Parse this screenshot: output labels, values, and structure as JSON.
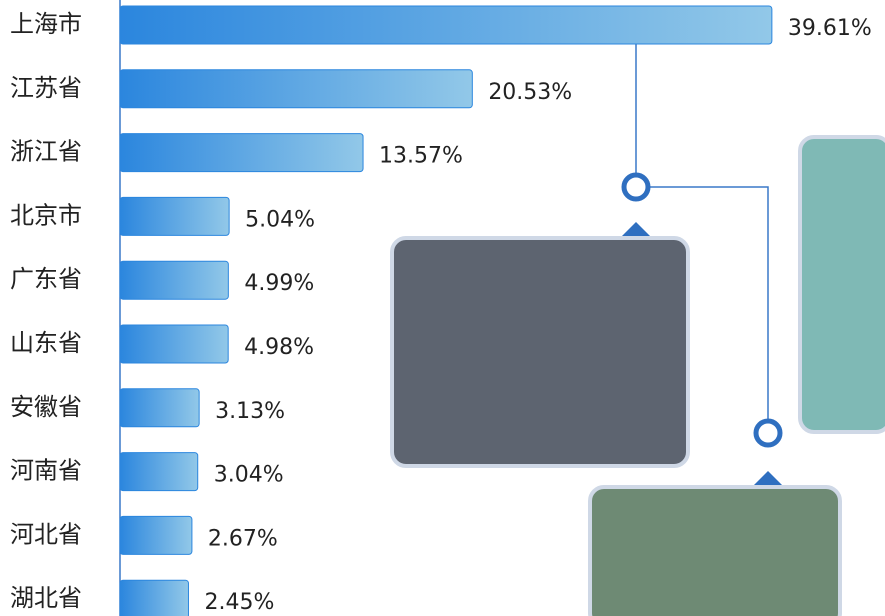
{
  "chart_data": {
    "type": "bar",
    "orientation": "horizontal",
    "categories": [
      "上海市",
      "江苏省",
      "浙江省",
      "北京市",
      "广东省",
      "山东省",
      "安徽省",
      "河南省",
      "河北省",
      "湖北省"
    ],
    "values": [
      39.61,
      20.53,
      13.57,
      5.04,
      4.99,
      4.98,
      3.13,
      3.04,
      2.67,
      2.45
    ],
    "value_labels": [
      "39.61%",
      "20.53%",
      "13.57%",
      "5.04%",
      "4.99%",
      "4.98%",
      "3.13%",
      "3.04%",
      "2.67%",
      "2.45%"
    ],
    "color": "#2b86de"
  }
}
